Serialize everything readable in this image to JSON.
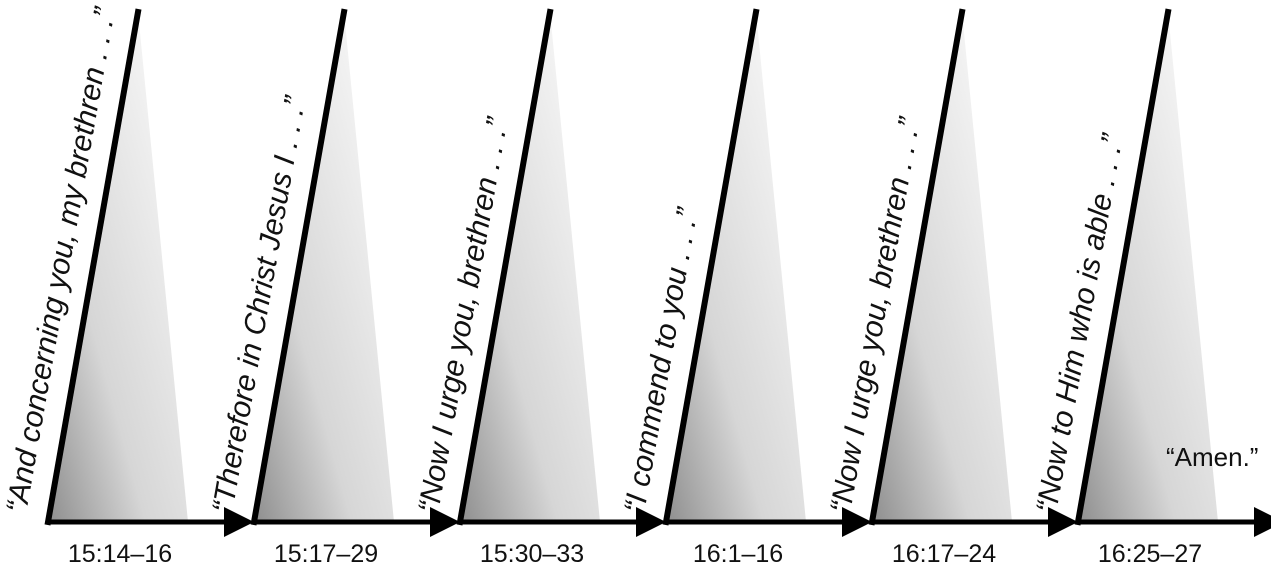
{
  "panels": [
    {
      "quote": "“And concerning you, my brethren . . .”",
      "reference": "15:14–16"
    },
    {
      "quote": "“Therefore in Christ Jesus I . . .”",
      "reference": "15:17–29"
    },
    {
      "quote": "“Now I urge you, brethren . . .”",
      "reference": "15:30–33"
    },
    {
      "quote": "“I commend to you . . .”",
      "reference": "16:1–16"
    },
    {
      "quote": "“Now I urge you, brethren . . .”",
      "reference": "16:17–24"
    },
    {
      "quote": "“Now to Him who is able . . .”",
      "reference": "16:25–27"
    }
  ],
  "closing_note": "“Amen.”",
  "colors": {
    "stroke": "#000000",
    "gradient_dark": "#8e8e8e",
    "gradient_light": "#ffffff"
  }
}
